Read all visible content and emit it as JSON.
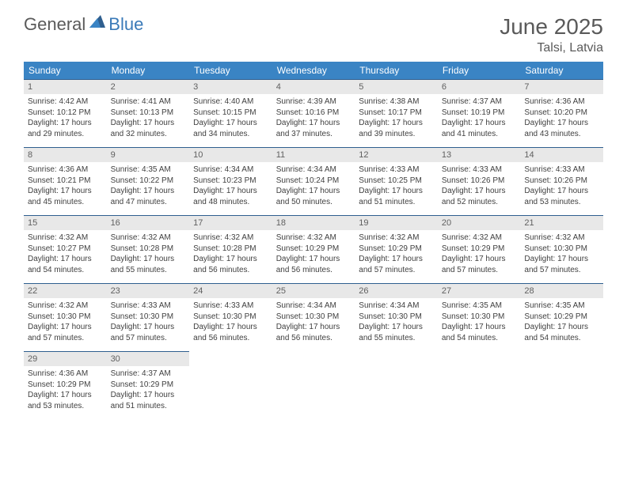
{
  "logo": {
    "general": "General",
    "blue": "Blue"
  },
  "title": "June 2025",
  "location": "Talsi, Latvia",
  "colors": {
    "header_bg": "#3a84c4",
    "header_text": "#ffffff",
    "daynum_bg": "#e8e8e8",
    "daynum_text": "#606060",
    "body_text": "#404040",
    "border": "#2f5f8f",
    "title_text": "#5a5a5a",
    "logo_blue": "#3a7ab8"
  },
  "weekdays": [
    "Sunday",
    "Monday",
    "Tuesday",
    "Wednesday",
    "Thursday",
    "Friday",
    "Saturday"
  ],
  "start_offset": 0,
  "days": [
    {
      "n": 1,
      "sunrise": "4:42 AM",
      "sunset": "10:12 PM",
      "dl_h": 17,
      "dl_m": 29
    },
    {
      "n": 2,
      "sunrise": "4:41 AM",
      "sunset": "10:13 PM",
      "dl_h": 17,
      "dl_m": 32
    },
    {
      "n": 3,
      "sunrise": "4:40 AM",
      "sunset": "10:15 PM",
      "dl_h": 17,
      "dl_m": 34
    },
    {
      "n": 4,
      "sunrise": "4:39 AM",
      "sunset": "10:16 PM",
      "dl_h": 17,
      "dl_m": 37
    },
    {
      "n": 5,
      "sunrise": "4:38 AM",
      "sunset": "10:17 PM",
      "dl_h": 17,
      "dl_m": 39
    },
    {
      "n": 6,
      "sunrise": "4:37 AM",
      "sunset": "10:19 PM",
      "dl_h": 17,
      "dl_m": 41
    },
    {
      "n": 7,
      "sunrise": "4:36 AM",
      "sunset": "10:20 PM",
      "dl_h": 17,
      "dl_m": 43
    },
    {
      "n": 8,
      "sunrise": "4:36 AM",
      "sunset": "10:21 PM",
      "dl_h": 17,
      "dl_m": 45
    },
    {
      "n": 9,
      "sunrise": "4:35 AM",
      "sunset": "10:22 PM",
      "dl_h": 17,
      "dl_m": 47
    },
    {
      "n": 10,
      "sunrise": "4:34 AM",
      "sunset": "10:23 PM",
      "dl_h": 17,
      "dl_m": 48
    },
    {
      "n": 11,
      "sunrise": "4:34 AM",
      "sunset": "10:24 PM",
      "dl_h": 17,
      "dl_m": 50
    },
    {
      "n": 12,
      "sunrise": "4:33 AM",
      "sunset": "10:25 PM",
      "dl_h": 17,
      "dl_m": 51
    },
    {
      "n": 13,
      "sunrise": "4:33 AM",
      "sunset": "10:26 PM",
      "dl_h": 17,
      "dl_m": 52
    },
    {
      "n": 14,
      "sunrise": "4:33 AM",
      "sunset": "10:26 PM",
      "dl_h": 17,
      "dl_m": 53
    },
    {
      "n": 15,
      "sunrise": "4:32 AM",
      "sunset": "10:27 PM",
      "dl_h": 17,
      "dl_m": 54
    },
    {
      "n": 16,
      "sunrise": "4:32 AM",
      "sunset": "10:28 PM",
      "dl_h": 17,
      "dl_m": 55
    },
    {
      "n": 17,
      "sunrise": "4:32 AM",
      "sunset": "10:28 PM",
      "dl_h": 17,
      "dl_m": 56
    },
    {
      "n": 18,
      "sunrise": "4:32 AM",
      "sunset": "10:29 PM",
      "dl_h": 17,
      "dl_m": 56
    },
    {
      "n": 19,
      "sunrise": "4:32 AM",
      "sunset": "10:29 PM",
      "dl_h": 17,
      "dl_m": 57
    },
    {
      "n": 20,
      "sunrise": "4:32 AM",
      "sunset": "10:29 PM",
      "dl_h": 17,
      "dl_m": 57
    },
    {
      "n": 21,
      "sunrise": "4:32 AM",
      "sunset": "10:30 PM",
      "dl_h": 17,
      "dl_m": 57
    },
    {
      "n": 22,
      "sunrise": "4:32 AM",
      "sunset": "10:30 PM",
      "dl_h": 17,
      "dl_m": 57
    },
    {
      "n": 23,
      "sunrise": "4:33 AM",
      "sunset": "10:30 PM",
      "dl_h": 17,
      "dl_m": 57
    },
    {
      "n": 24,
      "sunrise": "4:33 AM",
      "sunset": "10:30 PM",
      "dl_h": 17,
      "dl_m": 56
    },
    {
      "n": 25,
      "sunrise": "4:34 AM",
      "sunset": "10:30 PM",
      "dl_h": 17,
      "dl_m": 56
    },
    {
      "n": 26,
      "sunrise": "4:34 AM",
      "sunset": "10:30 PM",
      "dl_h": 17,
      "dl_m": 55
    },
    {
      "n": 27,
      "sunrise": "4:35 AM",
      "sunset": "10:30 PM",
      "dl_h": 17,
      "dl_m": 54
    },
    {
      "n": 28,
      "sunrise": "4:35 AM",
      "sunset": "10:29 PM",
      "dl_h": 17,
      "dl_m": 54
    },
    {
      "n": 29,
      "sunrise": "4:36 AM",
      "sunset": "10:29 PM",
      "dl_h": 17,
      "dl_m": 53
    },
    {
      "n": 30,
      "sunrise": "4:37 AM",
      "sunset": "10:29 PM",
      "dl_h": 17,
      "dl_m": 51
    }
  ]
}
